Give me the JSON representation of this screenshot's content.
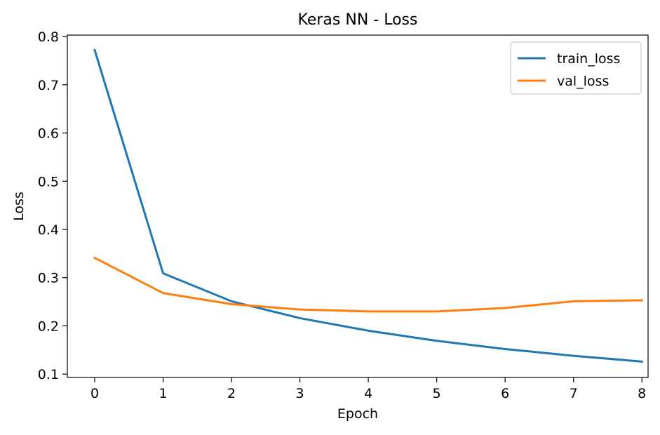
{
  "chart_data": {
    "type": "line",
    "title": "Keras NN - Loss",
    "xlabel": "Epoch",
    "ylabel": "Loss",
    "x": [
      0,
      1,
      2,
      3,
      4,
      5,
      6,
      7,
      8
    ],
    "xticks": [
      "0",
      "1",
      "2",
      "3",
      "4",
      "5",
      "6",
      "7",
      "8"
    ],
    "yticks": [
      "0.1",
      "0.2",
      "0.3",
      "0.4",
      "0.5",
      "0.6",
      "0.7",
      "0.8"
    ],
    "xlim": [
      -0.4,
      8.09
    ],
    "ylim": [
      0.093,
      0.803
    ],
    "grid": false,
    "legend_position": "top-right",
    "series": [
      {
        "name": "train_loss",
        "color": "#1f77b4",
        "values": [
          0.772,
          0.309,
          0.251,
          0.216,
          0.19,
          0.169,
          0.152,
          0.138,
          0.126
        ]
      },
      {
        "name": "val_loss",
        "color": "#ff7f0e",
        "values": [
          0.341,
          0.268,
          0.245,
          0.234,
          0.23,
          0.23,
          0.237,
          0.251,
          0.253
        ]
      }
    ]
  }
}
